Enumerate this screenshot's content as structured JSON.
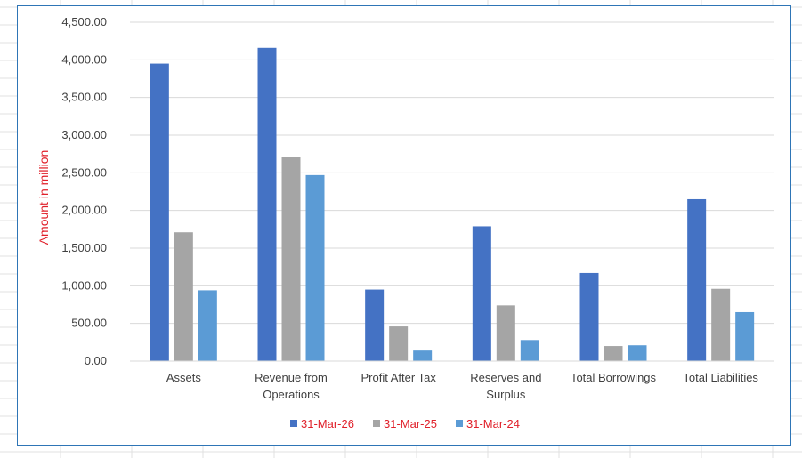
{
  "chart_data": {
    "type": "bar",
    "title": "",
    "xlabel": "",
    "ylabel": "Amount in million",
    "ylim": [
      0,
      4500
    ],
    "yticks": [
      0,
      500,
      1000,
      1500,
      2000,
      2500,
      3000,
      3500,
      4000,
      4500
    ],
    "ytick_labels": [
      "0.00",
      "500.00",
      "1,000.00",
      "1,500.00",
      "2,000.00",
      "2,500.00",
      "3,000.00",
      "3,500.00",
      "4,000.00",
      "4,500.00"
    ],
    "categories": [
      [
        "Assets"
      ],
      [
        "Revenue from",
        "Operations"
      ],
      [
        "Profit After Tax"
      ],
      [
        "Reserves and",
        "Surplus"
      ],
      [
        "Total Borrowings"
      ],
      [
        "Total Liabilities"
      ]
    ],
    "series": [
      {
        "name": "31-Mar-26",
        "color": "#4472c4",
        "values": [
          3950,
          4160,
          950,
          1790,
          1170,
          2150
        ]
      },
      {
        "name": "31-Mar-25",
        "color": "#a5a5a5",
        "values": [
          1710,
          2710,
          460,
          740,
          200,
          960
        ]
      },
      {
        "name": "31-Mar-24",
        "color": "#5b9bd5",
        "values": [
          940,
          2470,
          140,
          280,
          210,
          650
        ]
      }
    ],
    "grid": true,
    "legend": "bottom"
  }
}
